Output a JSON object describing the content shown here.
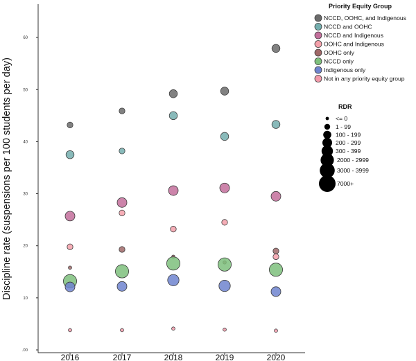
{
  "chart_data": {
    "type": "scatter",
    "x": [
      "2016",
      "2017",
      "2018",
      "2019",
      "2020"
    ],
    "ylabel": "Discipline rate (suspensions per 100 students per day)",
    "xlabel": "",
    "ylim": [
      0,
      65
    ],
    "yticks": [
      0,
      10,
      20,
      30,
      40,
      50,
      60
    ],
    "ytick_labels": [
      ".00",
      "10",
      "20",
      "30",
      "40",
      "50",
      "60"
    ],
    "grid": false,
    "legend_placement": "top-right",
    "series": [
      {
        "name": "NCCD, OOHC, and Indigenous",
        "color": "#6b6b6b",
        "values": [
          43.2,
          45.9,
          49.2,
          49.7,
          57.9
        ],
        "rdr": [
          1,
          1,
          2,
          2,
          2
        ]
      },
      {
        "name": "NCCD and OOHC",
        "color": "#74aeae",
        "values": [
          37.5,
          38.2,
          45.0,
          41.0,
          43.3
        ],
        "rdr": [
          2,
          1,
          2,
          2,
          2
        ]
      },
      {
        "name": "NCCD and Indigenous",
        "color": "#c36e9b",
        "values": [
          25.7,
          28.3,
          30.6,
          31.1,
          29.5
        ],
        "rdr": [
          3,
          3,
          3,
          3,
          3
        ]
      },
      {
        "name": "OOHC and Indigenous",
        "color": "#f4a0aa",
        "values": [
          19.8,
          26.3,
          23.2,
          24.5,
          17.9
        ],
        "rdr": [
          1,
          1,
          1,
          1,
          1
        ]
      },
      {
        "name": "OOHC only",
        "color": "#a06868",
        "values": [
          15.8,
          19.3,
          17.9,
          16.8,
          19.0
        ],
        "rdr": [
          0,
          1,
          0,
          0,
          1
        ]
      },
      {
        "name": "NCCD only",
        "color": "#7ec07c",
        "values": [
          13.2,
          15.1,
          16.6,
          16.4,
          15.4
        ],
        "rdr": [
          5,
          5,
          5,
          5,
          5
        ]
      },
      {
        "name": "Indigenous only",
        "color": "#6f84cf",
        "values": [
          12.1,
          12.2,
          13.4,
          12.3,
          11.2
        ],
        "rdr": [
          3,
          3,
          4,
          4,
          3
        ]
      },
      {
        "name": "Not in any priority equity group",
        "color": "#f29aaa",
        "values": [
          3.8,
          3.8,
          4.1,
          3.9,
          3.7
        ],
        "rdr": [
          0,
          0,
          0,
          0,
          0
        ]
      }
    ]
  },
  "legend": {
    "title": "Priority Equity Group"
  },
  "size_legend": {
    "title": "RDR",
    "labels": [
      "<= 0",
      "1 - 99",
      "100 - 199",
      "200 - 299",
      "300 - 399",
      "2000 - 2999",
      "3000 - 3999",
      "7000+"
    ]
  }
}
